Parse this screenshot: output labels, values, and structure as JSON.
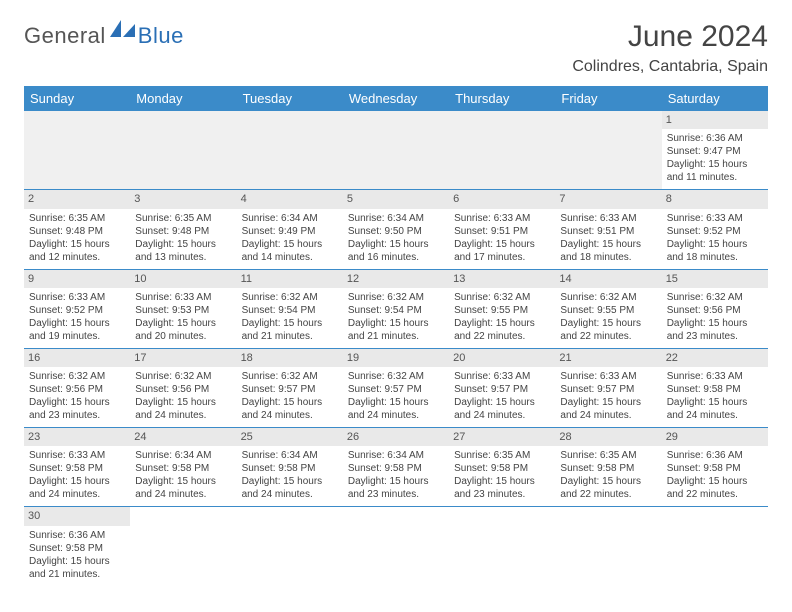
{
  "logo": {
    "part1": "General",
    "part2": "Blue"
  },
  "title": "June 2024",
  "location": "Colindres, Cantabria, Spain",
  "weekdays": [
    "Sunday",
    "Monday",
    "Tuesday",
    "Wednesday",
    "Thursday",
    "Friday",
    "Saturday"
  ],
  "colors": {
    "header_bg": "#3b8bc9",
    "daynum_bg": "#e9e9e9",
    "rule": "#3b8bc9"
  },
  "first_weekday_index": 6,
  "days": [
    {
      "n": 1,
      "sunrise": "6:36 AM",
      "sunset": "9:47 PM",
      "daylight": "15 hours and 11 minutes."
    },
    {
      "n": 2,
      "sunrise": "6:35 AM",
      "sunset": "9:48 PM",
      "daylight": "15 hours and 12 minutes."
    },
    {
      "n": 3,
      "sunrise": "6:35 AM",
      "sunset": "9:48 PM",
      "daylight": "15 hours and 13 minutes."
    },
    {
      "n": 4,
      "sunrise": "6:34 AM",
      "sunset": "9:49 PM",
      "daylight": "15 hours and 14 minutes."
    },
    {
      "n": 5,
      "sunrise": "6:34 AM",
      "sunset": "9:50 PM",
      "daylight": "15 hours and 16 minutes."
    },
    {
      "n": 6,
      "sunrise": "6:33 AM",
      "sunset": "9:51 PM",
      "daylight": "15 hours and 17 minutes."
    },
    {
      "n": 7,
      "sunrise": "6:33 AM",
      "sunset": "9:51 PM",
      "daylight": "15 hours and 18 minutes."
    },
    {
      "n": 8,
      "sunrise": "6:33 AM",
      "sunset": "9:52 PM",
      "daylight": "15 hours and 18 minutes."
    },
    {
      "n": 9,
      "sunrise": "6:33 AM",
      "sunset": "9:52 PM",
      "daylight": "15 hours and 19 minutes."
    },
    {
      "n": 10,
      "sunrise": "6:33 AM",
      "sunset": "9:53 PM",
      "daylight": "15 hours and 20 minutes."
    },
    {
      "n": 11,
      "sunrise": "6:32 AM",
      "sunset": "9:54 PM",
      "daylight": "15 hours and 21 minutes."
    },
    {
      "n": 12,
      "sunrise": "6:32 AM",
      "sunset": "9:54 PM",
      "daylight": "15 hours and 21 minutes."
    },
    {
      "n": 13,
      "sunrise": "6:32 AM",
      "sunset": "9:55 PM",
      "daylight": "15 hours and 22 minutes."
    },
    {
      "n": 14,
      "sunrise": "6:32 AM",
      "sunset": "9:55 PM",
      "daylight": "15 hours and 22 minutes."
    },
    {
      "n": 15,
      "sunrise": "6:32 AM",
      "sunset": "9:56 PM",
      "daylight": "15 hours and 23 minutes."
    },
    {
      "n": 16,
      "sunrise": "6:32 AM",
      "sunset": "9:56 PM",
      "daylight": "15 hours and 23 minutes."
    },
    {
      "n": 17,
      "sunrise": "6:32 AM",
      "sunset": "9:56 PM",
      "daylight": "15 hours and 24 minutes."
    },
    {
      "n": 18,
      "sunrise": "6:32 AM",
      "sunset": "9:57 PM",
      "daylight": "15 hours and 24 minutes."
    },
    {
      "n": 19,
      "sunrise": "6:32 AM",
      "sunset": "9:57 PM",
      "daylight": "15 hours and 24 minutes."
    },
    {
      "n": 20,
      "sunrise": "6:33 AM",
      "sunset": "9:57 PM",
      "daylight": "15 hours and 24 minutes."
    },
    {
      "n": 21,
      "sunrise": "6:33 AM",
      "sunset": "9:57 PM",
      "daylight": "15 hours and 24 minutes."
    },
    {
      "n": 22,
      "sunrise": "6:33 AM",
      "sunset": "9:58 PM",
      "daylight": "15 hours and 24 minutes."
    },
    {
      "n": 23,
      "sunrise": "6:33 AM",
      "sunset": "9:58 PM",
      "daylight": "15 hours and 24 minutes."
    },
    {
      "n": 24,
      "sunrise": "6:34 AM",
      "sunset": "9:58 PM",
      "daylight": "15 hours and 24 minutes."
    },
    {
      "n": 25,
      "sunrise": "6:34 AM",
      "sunset": "9:58 PM",
      "daylight": "15 hours and 24 minutes."
    },
    {
      "n": 26,
      "sunrise": "6:34 AM",
      "sunset": "9:58 PM",
      "daylight": "15 hours and 23 minutes."
    },
    {
      "n": 27,
      "sunrise": "6:35 AM",
      "sunset": "9:58 PM",
      "daylight": "15 hours and 23 minutes."
    },
    {
      "n": 28,
      "sunrise": "6:35 AM",
      "sunset": "9:58 PM",
      "daylight": "15 hours and 22 minutes."
    },
    {
      "n": 29,
      "sunrise": "6:36 AM",
      "sunset": "9:58 PM",
      "daylight": "15 hours and 22 minutes."
    },
    {
      "n": 30,
      "sunrise": "6:36 AM",
      "sunset": "9:58 PM",
      "daylight": "15 hours and 21 minutes."
    }
  ],
  "labels": {
    "sunrise": "Sunrise: ",
    "sunset": "Sunset: ",
    "daylight": "Daylight: "
  }
}
